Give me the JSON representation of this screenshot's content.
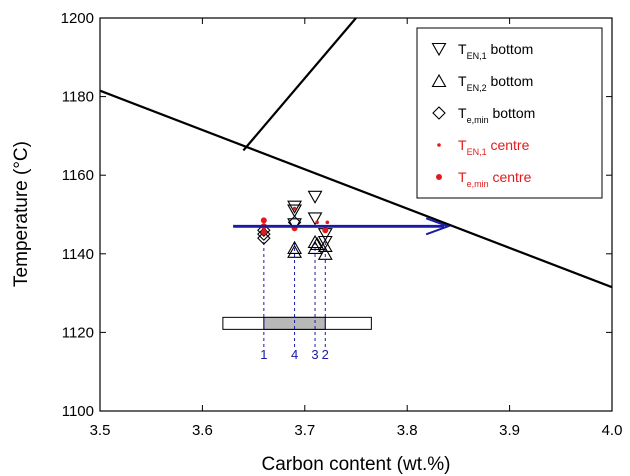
{
  "chart_data": {
    "type": "scatter",
    "xlabel": "Carbon content (wt.%)",
    "ylabel": "Temperature (°C)",
    "xlim": [
      3.5,
      4.0
    ],
    "ylim": [
      1100,
      1200
    ],
    "x_ticks": [
      "3.5",
      "3.6",
      "3.7",
      "3.8",
      "3.9",
      "4.0"
    ],
    "y_ticks": [
      "1100",
      "1120",
      "1140",
      "1160",
      "1180",
      "1200"
    ],
    "grid": false,
    "legend_position": "top-right",
    "colors": {
      "black": "#000000",
      "red": "#e31a1c",
      "blue": "#1a1aa6",
      "bar_fill": "#b8b8b8"
    },
    "lines": [
      {
        "id": "liquidus-austenite",
        "points": [
          [
            3.5,
            1181.5
          ],
          [
            4.0,
            1131.5
          ]
        ]
      },
      {
        "id": "liquidus-graphite",
        "points": [
          [
            3.64,
            1166.3
          ],
          [
            3.75,
            1200
          ]
        ]
      }
    ],
    "arrow": {
      "from": [
        3.63,
        1147
      ],
      "to": [
        3.84,
        1147
      ]
    },
    "legend": [
      {
        "marker": "triangle-down",
        "main": "T",
        "sub": "EN,1",
        "suffix": " bottom",
        "color": "#000000"
      },
      {
        "marker": "triangle-up",
        "main": "T",
        "sub": "EN,2",
        "suffix": " bottom",
        "color": "#000000"
      },
      {
        "marker": "diamond",
        "main": "T",
        "sub": "e,min",
        "suffix": " bottom",
        "color": "#000000"
      },
      {
        "marker": "small-dot",
        "main": "T",
        "sub": "EN,1",
        "suffix": " centre",
        "color": "#e31a1c"
      },
      {
        "marker": "dot",
        "main": "T",
        "sub": "e,min",
        "suffix": " centre",
        "color": "#e31a1c"
      }
    ],
    "series": [
      {
        "marker": "triangle-down",
        "points": [
          [
            3.69,
            1152
          ],
          [
            3.69,
            1151
          ],
          [
            3.69,
            1147.5
          ],
          [
            3.71,
            1154.5
          ],
          [
            3.71,
            1149
          ],
          [
            3.72,
            1145
          ],
          [
            3.72,
            1143
          ]
        ]
      },
      {
        "marker": "triangle-up",
        "points": [
          [
            3.69,
            1141.5
          ],
          [
            3.69,
            1140.5
          ],
          [
            3.71,
            1143
          ],
          [
            3.71,
            1141.5
          ],
          [
            3.712,
            1142.5
          ],
          [
            3.72,
            1142
          ],
          [
            3.72,
            1140
          ]
        ]
      },
      {
        "marker": "diamond",
        "points": [
          [
            3.66,
            1146
          ],
          [
            3.66,
            1145
          ],
          [
            3.66,
            1144
          ],
          [
            3.69,
            1148
          ]
        ]
      },
      {
        "marker": "small-dot",
        "points": [
          [
            3.69,
            1151.5
          ],
          [
            3.712,
            1148
          ],
          [
            3.722,
            1148
          ]
        ]
      },
      {
        "marker": "dot",
        "points": [
          [
            3.66,
            1148.5
          ],
          [
            3.66,
            1147
          ],
          [
            3.66,
            1145.5
          ],
          [
            3.69,
            1146.5
          ],
          [
            3.72,
            1146
          ]
        ]
      }
    ],
    "guides": [
      {
        "x": 3.66,
        "label": "1"
      },
      {
        "x": 3.69,
        "label": "4"
      },
      {
        "x": 3.71,
        "label": "3"
      },
      {
        "x": 3.72,
        "label": "2"
      }
    ],
    "range_bar": {
      "y": 1122.3,
      "outer": [
        3.62,
        3.765
      ],
      "inner": [
        3.66,
        3.72
      ]
    }
  }
}
